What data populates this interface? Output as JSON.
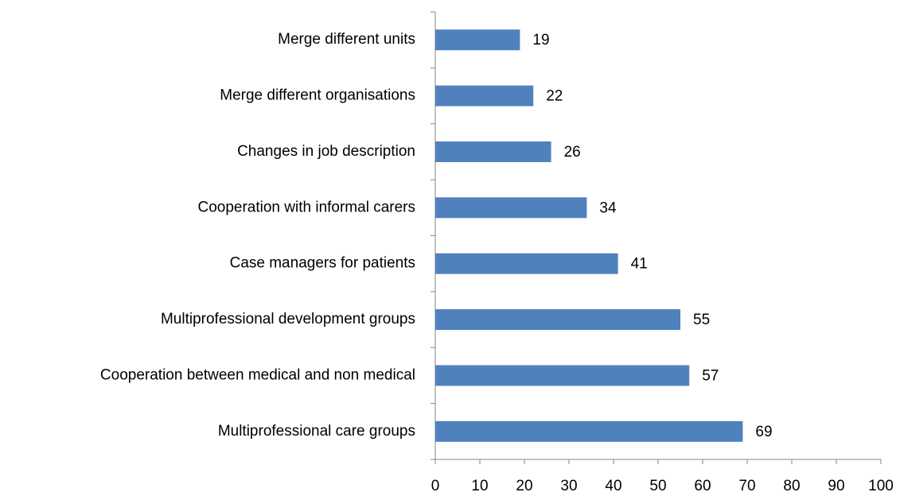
{
  "chart_data": {
    "type": "bar",
    "orientation": "horizontal",
    "categories": [
      "Merge different units",
      "Merge different organisations",
      "Changes in job description",
      "Cooperation with informal carers",
      "Case managers for patients",
      "Multiprofessional development groups",
      "Cooperation between medical and non medical",
      "Multiprofessional care groups"
    ],
    "values": [
      19,
      22,
      26,
      34,
      41,
      55,
      57,
      69
    ],
    "color": "#4f81bd",
    "xlim": [
      0,
      100
    ],
    "xticks": [
      0,
      10,
      20,
      30,
      40,
      50,
      60,
      70,
      80,
      90,
      100
    ]
  }
}
